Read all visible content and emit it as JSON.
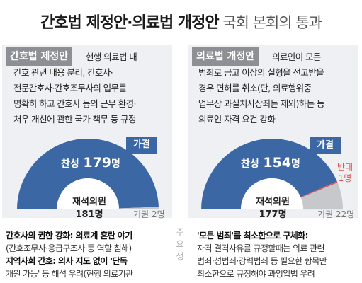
{
  "header": {
    "title_main": "간호법 제정안·의료법 개정안",
    "title_sub": " 국회 본회의 통과"
  },
  "colors": {
    "accent_blue": "#3b68a5",
    "against_red": "#d9534f",
    "abstain_gray": "#c6c8cb",
    "label_gray": "#8c8f93"
  },
  "left_panel": {
    "label": "간호법 제정안",
    "desc_lines": [
      "현행 의료법 내",
      "간호 관련 내용 분리, 간호사·",
      "전문간호사·간호조무사의 업무를",
      "명확히 하고 간호사 등의 근무 환경·",
      "처우 개선에 관한 국가 책무 등 규정"
    ],
    "verdict": "가결",
    "yes_label": "찬성",
    "yes_value": "179",
    "yes_unit": "명",
    "total_label": "재석의원",
    "total_value": "181명",
    "abstain_text": "기권 2명"
  },
  "right_panel": {
    "label": "의료법 개정안",
    "desc_lines": [
      "의료인이 모든",
      "범죄로 금고 이상의 실형을 선고받을",
      "경우 면허를 취소(단, 의료행위중",
      "업무상 과실치사상죄는 제외)하는 등",
      "의료인 자격 요건 강화"
    ],
    "verdict": "가결",
    "yes_label": "찬성",
    "yes_value": "154",
    "yes_unit": "명",
    "against_label": "반대",
    "against_value": "1명",
    "total_label": "재석의원",
    "total_value": "177명",
    "abstain_text": "기권 22명"
  },
  "bottom": {
    "side_label": "주요 쟁",
    "left_lines": [
      "간호사의 권한 강화: 의료계 혼란 야기",
      "(간호조무사·응급구조사 등 역할 침해)",
      "지역사회 간호: 의사 지도 없이 '단독",
      "개원 가능' 등 해석 우려(현행 의료기관"
    ],
    "right_lines": [
      "'모든 범죄'를 최소한으로 구체화:",
      "자격 결격사유를 규정할때는 의료 관련",
      "범죄·성범죄·강력범죄 등 필요한 항목만",
      "최소한으로 규정해야 과잉입법 우려"
    ]
  },
  "chart_data": [
    {
      "type": "pie",
      "title": "간호법 제정안",
      "labels": [
        "찬성",
        "반대",
        "기권"
      ],
      "values": [
        179,
        0,
        2
      ],
      "total": 181,
      "colors": [
        "#3b68a5",
        "#d9534f",
        "#c6c8cb"
      ]
    },
    {
      "type": "pie",
      "title": "의료법 개정안",
      "labels": [
        "찬성",
        "반대",
        "기권"
      ],
      "values": [
        154,
        1,
        22
      ],
      "total": 177,
      "colors": [
        "#3b68a5",
        "#d9534f",
        "#c6c8cb"
      ]
    }
  ]
}
